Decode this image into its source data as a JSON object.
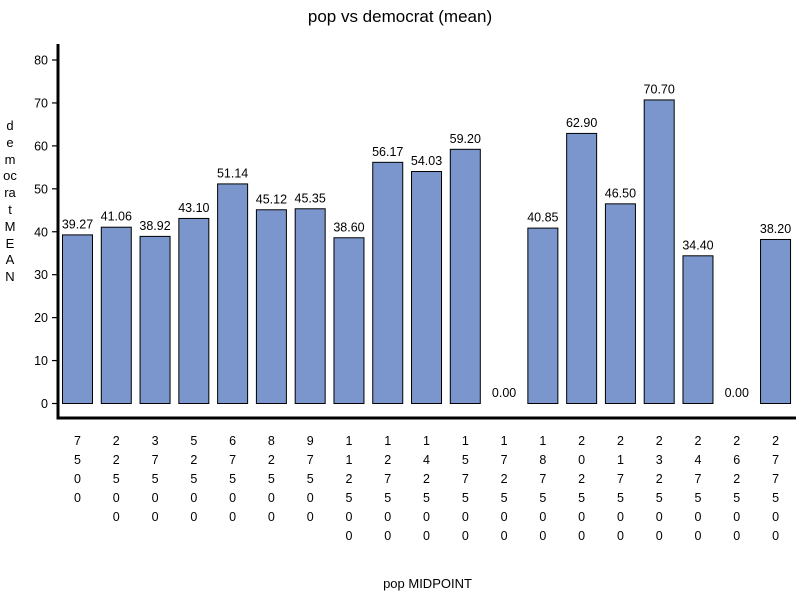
{
  "chart_data": {
    "type": "bar",
    "title": "pop vs democrat (mean)",
    "xlabel": "pop MIDPOINT",
    "ylabel": "democrat MEAN",
    "ylim": [
      0,
      80
    ],
    "yticks": [
      0,
      10,
      20,
      30,
      40,
      50,
      60,
      70,
      80
    ],
    "categories": [
      "7500",
      "22500",
      "37500",
      "52500",
      "67500",
      "82500",
      "97500",
      "112500",
      "127500",
      "142500",
      "157500",
      "172500",
      "187500",
      "202500",
      "217500",
      "232500",
      "247500",
      "262500",
      "277500"
    ],
    "values": [
      39.27,
      41.06,
      38.92,
      43.1,
      51.14,
      45.12,
      45.35,
      38.6,
      56.17,
      54.03,
      59.2,
      0.0,
      40.85,
      62.9,
      46.5,
      70.7,
      34.4,
      0.0,
      38.2
    ],
    "value_labels": [
      "39.27",
      "41.06",
      "38.92",
      "43.10",
      "51.14",
      "45.12",
      "45.35",
      "38.60",
      "56.17",
      "54.03",
      "59.20",
      "0.00",
      "40.85",
      "62.90",
      "46.50",
      "70.70",
      "34.40",
      "0.00",
      "38.20"
    ],
    "bar_color": "#7b96cc",
    "bar_edge_color": "#000000",
    "grid": false,
    "legend": "none"
  }
}
